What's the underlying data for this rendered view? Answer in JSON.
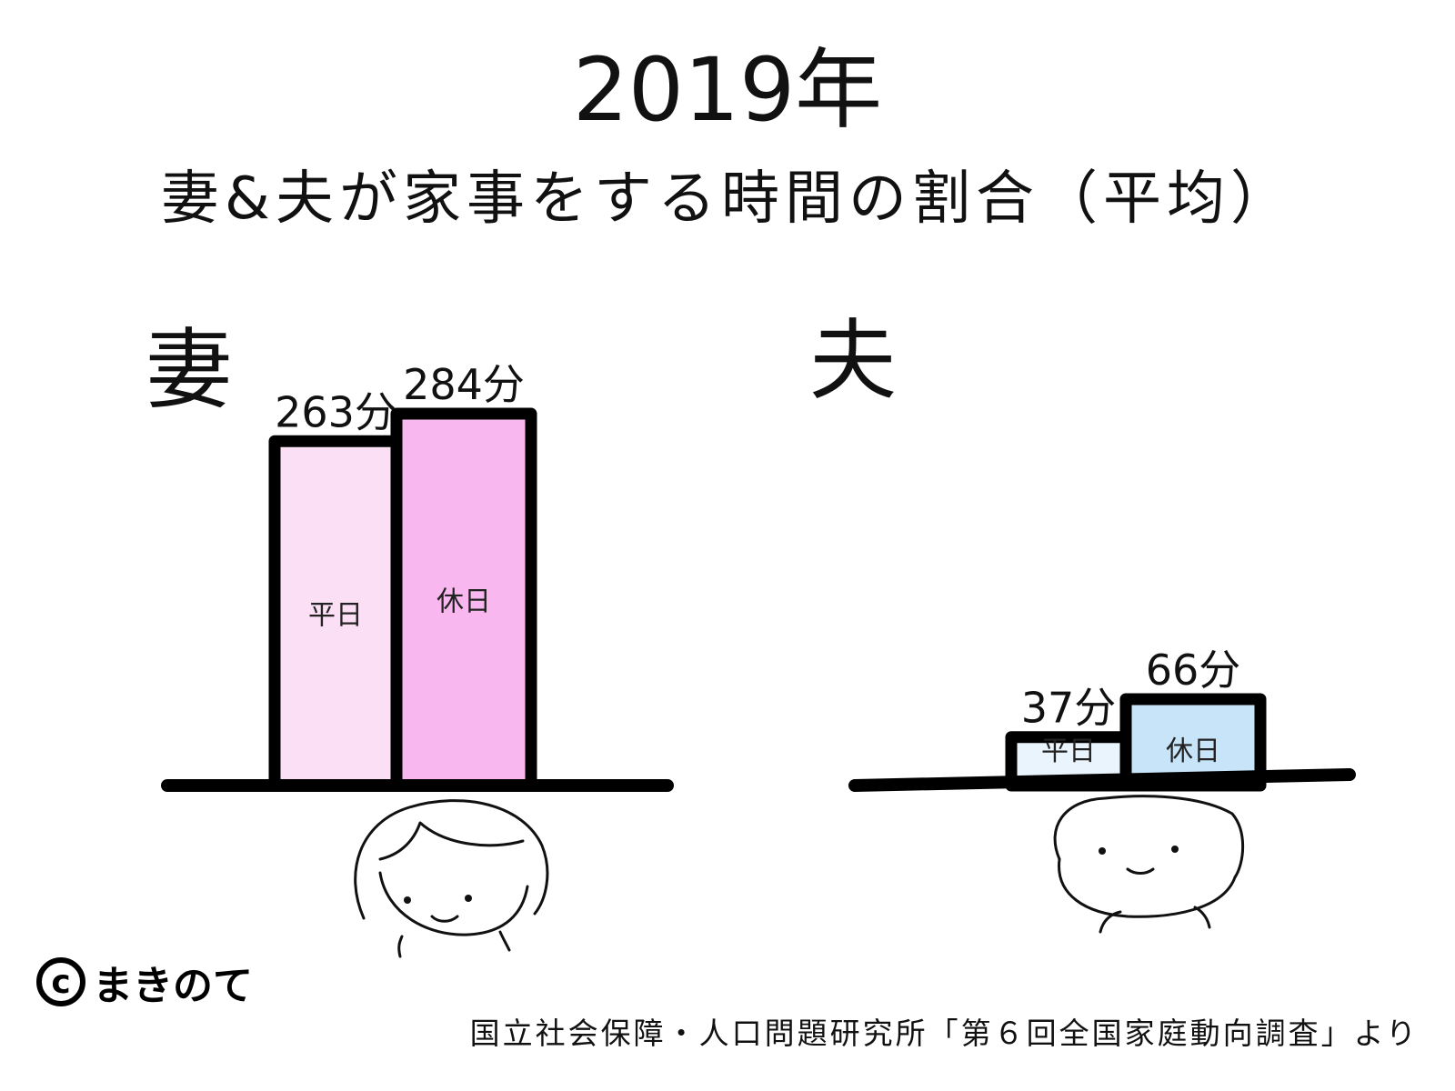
{
  "title": "2019年",
  "subtitle": "妻&夫が家事をする時間の割合（平均）",
  "credit": "まきのて",
  "source": "国立社会保障・人口問題研究所「第６回全国家庭動向調査」より",
  "colors": {
    "wife_weekday": "#fbe0f5",
    "wife_holiday": "#f8b8ef",
    "husband_weekday": "#eaf4fc",
    "husband_holiday": "#c7e4f8",
    "axis": "#000000"
  },
  "icons": [
    "copyright-icon",
    "wife-face-icon",
    "husband-face-icon"
  ],
  "chart_data": [
    {
      "type": "bar",
      "panel_label": "妻",
      "categories": [
        "平日",
        "休日"
      ],
      "values": [
        263,
        284
      ],
      "value_labels": [
        "263分",
        "284分"
      ],
      "unit": "分"
    },
    {
      "type": "bar",
      "panel_label": "夫",
      "categories": [
        "平日",
        "休日"
      ],
      "values": [
        37,
        66
      ],
      "value_labels": [
        "37分",
        "66分"
      ],
      "unit": "分"
    }
  ]
}
